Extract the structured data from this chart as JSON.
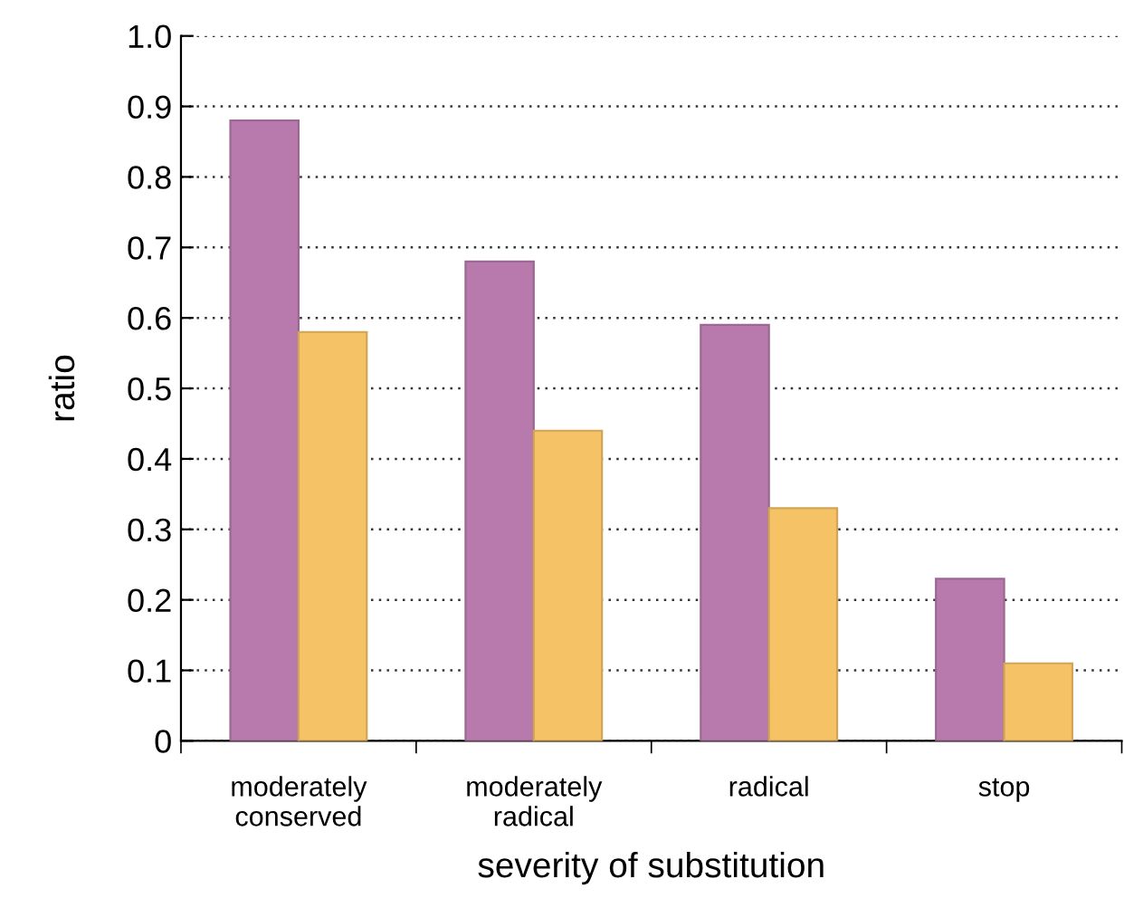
{
  "chart_data": {
    "type": "bar",
    "xlabel": "severity of substitution",
    "ylabel": "ratio",
    "categories": [
      "moderately\nconserved",
      "moderately\nradical",
      "radical",
      "stop"
    ],
    "series": [
      {
        "color": "#b87aad",
        "values": [
          0.88,
          0.68,
          0.59,
          0.23
        ]
      },
      {
        "color": "#f5c266",
        "values": [
          0.58,
          0.44,
          0.33,
          0.11
        ]
      }
    ],
    "ylim": [
      0,
      1
    ],
    "yticks": [
      0,
      0.1,
      0.2,
      0.3,
      0.4,
      0.5,
      0.6,
      0.7,
      0.8,
      0.9,
      {
        "value": 1,
        "label": "1.0"
      }
    ],
    "grid": "y"
  }
}
